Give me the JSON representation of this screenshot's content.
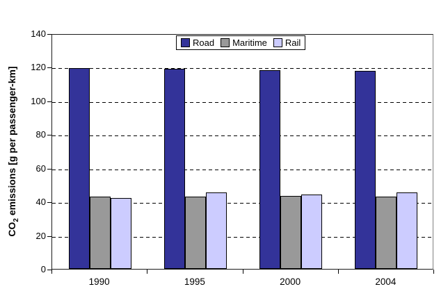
{
  "chart_data": {
    "type": "bar",
    "title": "",
    "categories": [
      "1990",
      "1995",
      "2000",
      "2004"
    ],
    "series": [
      {
        "name": "Road",
        "color": "#333399",
        "values": [
          119.5,
          119.0,
          118.0,
          117.5
        ]
      },
      {
        "name": "Maritime",
        "color": "#999999",
        "values": [
          43.0,
          43.0,
          43.5,
          43.0
        ]
      },
      {
        "name": "Rail",
        "color": "#CCCCFF",
        "values": [
          42.0,
          45.5,
          44.0,
          45.5
        ]
      }
    ],
    "xlabel": "",
    "ylabel": "CO2 emissions [g per passenger-km]",
    "ylabel_parts": {
      "prefix": "CO",
      "sub": "2",
      "suffix": " emissions [g per passenger-km]"
    },
    "ylim": [
      0,
      140
    ],
    "yticks": [
      0,
      20,
      40,
      60,
      80,
      100,
      120,
      140
    ],
    "grid": "horizontal-dashed",
    "legend": {
      "position": "top-center",
      "entries": [
        "Road",
        "Maritime",
        "Rail"
      ]
    },
    "colors": {
      "axis": "#000000",
      "bar_border": "#000000",
      "background": "#FFFFFF"
    }
  }
}
